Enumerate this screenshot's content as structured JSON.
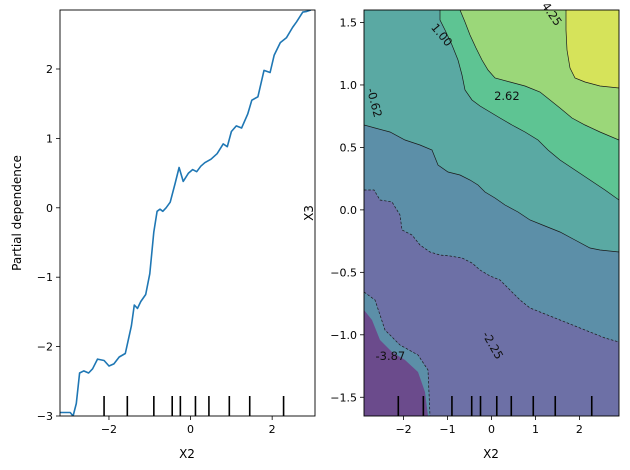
{
  "chart_data": [
    {
      "type": "line",
      "panel": "left",
      "title": "",
      "xlabel": "X2",
      "ylabel": "Partial dependence",
      "xlim": [
        -3.2,
        3.05
      ],
      "ylim": [
        -3.0,
        2.85
      ],
      "xticks": [
        -2,
        0,
        2
      ],
      "xtick_labels": [
        "−2",
        "0",
        "2"
      ],
      "yticks": [
        -3,
        -2,
        -1,
        0,
        1,
        2
      ],
      "ytick_labels": [
        "−3",
        "−2",
        "−1",
        "0",
        "1",
        "2"
      ],
      "line_color": "#1f77b4",
      "series": [
        {
          "name": "partial dependence",
          "x": [
            -3.2,
            -2.95,
            -2.88,
            -2.8,
            -2.72,
            -2.62,
            -2.5,
            -2.4,
            -2.28,
            -2.12,
            -2.0,
            -1.88,
            -1.75,
            -1.6,
            -1.45,
            -1.38,
            -1.3,
            -1.22,
            -1.1,
            -1.0,
            -0.9,
            -0.82,
            -0.75,
            -0.68,
            -0.6,
            -0.5,
            -0.38,
            -0.28,
            -0.18,
            -0.05,
            0.05,
            0.15,
            0.25,
            0.35,
            0.5,
            0.65,
            0.8,
            0.9,
            1.0,
            1.12,
            1.25,
            1.4,
            1.5,
            1.65,
            1.8,
            1.95,
            2.05,
            2.2,
            2.35,
            2.5,
            2.6,
            2.75,
            2.85,
            2.95
          ],
          "y": [
            -2.95,
            -2.95,
            -3.0,
            -2.82,
            -2.38,
            -2.35,
            -2.38,
            -2.32,
            -2.18,
            -2.2,
            -2.28,
            -2.25,
            -2.15,
            -2.1,
            -1.7,
            -1.4,
            -1.45,
            -1.35,
            -1.25,
            -0.95,
            -0.35,
            -0.05,
            -0.02,
            -0.05,
            0.0,
            0.08,
            0.35,
            0.58,
            0.38,
            0.5,
            0.55,
            0.52,
            0.6,
            0.65,
            0.7,
            0.78,
            0.92,
            0.88,
            1.1,
            1.18,
            1.15,
            1.35,
            1.55,
            1.6,
            1.98,
            1.95,
            2.2,
            2.38,
            2.45,
            2.6,
            2.68,
            2.82,
            2.83,
            2.85
          ]
        }
      ],
      "rug_ticks": [
        -2.12,
        -1.55,
        -0.9,
        -0.45,
        -0.25,
        0.12,
        0.45,
        0.95,
        1.45,
        2.28
      ]
    },
    {
      "type": "contour",
      "panel": "right",
      "title": "",
      "xlabel": "X2",
      "ylabel": "X3",
      "xlim": [
        -2.9,
        2.9
      ],
      "ylim": [
        -1.65,
        1.6
      ],
      "xticks": [
        -2,
        -1,
        0,
        1,
        2
      ],
      "xtick_labels": [
        "−2",
        "−1",
        "0",
        "1",
        "2"
      ],
      "yticks": [
        -1.5,
        -1.0,
        -0.5,
        0.0,
        0.5,
        1.0,
        1.5
      ],
      "ytick_labels": [
        "−1.5",
        "−1.0",
        "−0.5",
        "0.0",
        "0.5",
        "1.0",
        "1.5"
      ],
      "levels": [
        -3.87,
        -2.25,
        -0.62,
        1.0,
        2.62,
        4.25
      ],
      "level_colors": [
        "#6b4b8c",
        "#6d70a6",
        "#5c8fa8",
        "#5aa9a3",
        "#5ec493",
        "#9bd779",
        "#d6e35a"
      ],
      "contour_labels": [
        {
          "text": "-3.87",
          "x": -2.3,
          "y": -1.2,
          "rotation": 0
        },
        {
          "text": "-2.25",
          "x": -0.05,
          "y": -1.1,
          "rotation": 60
        },
        {
          "text": "-0.62",
          "x": -2.75,
          "y": 0.85,
          "rotation": 75
        },
        {
          "text": "1.00",
          "x": -1.2,
          "y": 1.38,
          "rotation": 50
        },
        {
          "text": "2.62",
          "x": 0.35,
          "y": 0.88,
          "rotation": 0
        },
        {
          "text": "4.25",
          "x": 1.3,
          "y": 1.55,
          "rotation": 55
        }
      ],
      "rug_ticks": [
        -2.12,
        -1.55,
        -0.9,
        -0.45,
        -0.25,
        0.12,
        0.45,
        0.95,
        1.45,
        2.28
      ]
    }
  ]
}
